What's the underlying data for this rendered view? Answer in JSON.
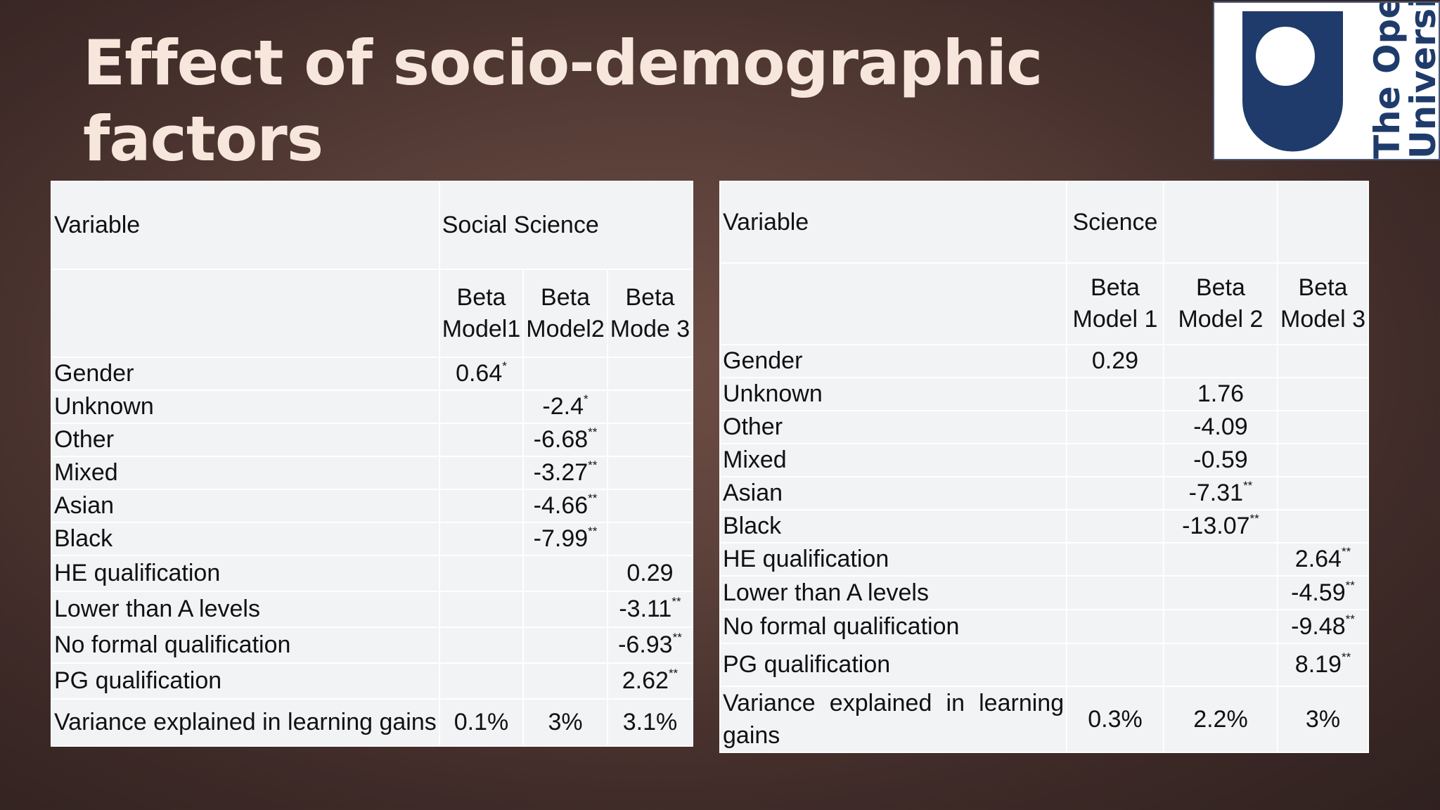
{
  "title": {
    "line1": "Effect of socio-demographic",
    "line2": "factors"
  },
  "logo": {
    "line1": "The Open",
    "line2": "University",
    "colors": {
      "navy": "#1f3b6b",
      "white": "#ffffff"
    }
  },
  "left_table": {
    "variable_header": "Variable",
    "group_header": "Social Science",
    "models": [
      {
        "l1": "Beta",
        "l2": "Model1"
      },
      {
        "l1": "Beta",
        "l2": "Model2"
      },
      {
        "l1": "Beta",
        "l2": "Mode 3"
      }
    ],
    "rows": [
      {
        "label": "Gender",
        "cells": [
          {
            "v": "0.64",
            "s": "*"
          },
          {
            "v": "",
            "s": ""
          },
          {
            "v": "",
            "s": ""
          }
        ]
      },
      {
        "label": "Unknown",
        "cells": [
          {
            "v": "",
            "s": ""
          },
          {
            "v": "-2.4",
            "s": "*"
          },
          {
            "v": "",
            "s": ""
          }
        ]
      },
      {
        "label": "Other",
        "cells": [
          {
            "v": "",
            "s": ""
          },
          {
            "v": "-6.68",
            "s": "**"
          },
          {
            "v": "",
            "s": ""
          }
        ]
      },
      {
        "label": "Mixed",
        "cells": [
          {
            "v": "",
            "s": ""
          },
          {
            "v": "-3.27",
            "s": "**"
          },
          {
            "v": "",
            "s": ""
          }
        ]
      },
      {
        "label": "Asian",
        "cells": [
          {
            "v": "",
            "s": ""
          },
          {
            "v": "-4.66",
            "s": "**"
          },
          {
            "v": "",
            "s": ""
          }
        ]
      },
      {
        "label": "Black",
        "cells": [
          {
            "v": "",
            "s": ""
          },
          {
            "v": "-7.99",
            "s": "**"
          },
          {
            "v": "",
            "s": ""
          }
        ]
      },
      {
        "label": "HE qualification",
        "cells": [
          {
            "v": "",
            "s": ""
          },
          {
            "v": "",
            "s": ""
          },
          {
            "v": "0.29",
            "s": ""
          }
        ]
      },
      {
        "label": "Lower than A levels",
        "cells": [
          {
            "v": "",
            "s": ""
          },
          {
            "v": "",
            "s": ""
          },
          {
            "v": "-3.11",
            "s": "**"
          }
        ]
      },
      {
        "label": "No formal qualification",
        "cells": [
          {
            "v": "",
            "s": ""
          },
          {
            "v": "",
            "s": ""
          },
          {
            "v": "-6.93",
            "s": "**"
          }
        ]
      },
      {
        "label": "PG qualification",
        "cells": [
          {
            "v": "",
            "s": ""
          },
          {
            "v": "",
            "s": ""
          },
          {
            "v": "2.62",
            "s": "**"
          }
        ]
      }
    ],
    "variance": {
      "label": "Variance explained in learning gains",
      "values": [
        "0.1%",
        "3%",
        "3.1%"
      ]
    }
  },
  "right_table": {
    "variable_header": "Variable",
    "group_header": "Science",
    "models": [
      {
        "l1": "Beta",
        "l2": "Model 1"
      },
      {
        "l1": "Beta",
        "l2": "Model 2"
      },
      {
        "l1": "Beta",
        "l2": "Model 3"
      }
    ],
    "rows": [
      {
        "label": "Gender",
        "cells": [
          {
            "v": "0.29",
            "s": ""
          },
          {
            "v": "",
            "s": ""
          },
          {
            "v": "",
            "s": ""
          }
        ]
      },
      {
        "label": "Unknown",
        "cells": [
          {
            "v": "",
            "s": ""
          },
          {
            "v": "1.76",
            "s": ""
          },
          {
            "v": "",
            "s": ""
          }
        ]
      },
      {
        "label": "Other",
        "cells": [
          {
            "v": "",
            "s": ""
          },
          {
            "v": "-4.09",
            "s": ""
          },
          {
            "v": "",
            "s": ""
          }
        ]
      },
      {
        "label": "Mixed",
        "cells": [
          {
            "v": "",
            "s": ""
          },
          {
            "v": "-0.59",
            "s": ""
          },
          {
            "v": "",
            "s": ""
          }
        ]
      },
      {
        "label": "Asian",
        "cells": [
          {
            "v": "",
            "s": ""
          },
          {
            "v": "-7.31",
            "s": "**"
          },
          {
            "v": "",
            "s": ""
          }
        ]
      },
      {
        "label": "Black",
        "cells": [
          {
            "v": "",
            "s": ""
          },
          {
            "v": "-13.07",
            "s": "**"
          },
          {
            "v": "",
            "s": ""
          }
        ]
      },
      {
        "label": "HE qualification",
        "cells": [
          {
            "v": "",
            "s": ""
          },
          {
            "v": "",
            "s": ""
          },
          {
            "v": "2.64",
            "s": "**"
          }
        ]
      },
      {
        "label": "Lower than A levels",
        "cells": [
          {
            "v": "",
            "s": ""
          },
          {
            "v": "",
            "s": ""
          },
          {
            "v": "-4.59",
            "s": "**"
          }
        ]
      },
      {
        "label": "No formal qualification",
        "cells": [
          {
            "v": "",
            "s": ""
          },
          {
            "v": "",
            "s": ""
          },
          {
            "v": "-9.48",
            "s": "**"
          }
        ]
      },
      {
        "label": "PG qualification",
        "cells": [
          {
            "v": "",
            "s": ""
          },
          {
            "v": "",
            "s": ""
          },
          {
            "v": "8.19",
            "s": "**"
          }
        ]
      }
    ],
    "variance": {
      "label": "Variance explained in learning gains",
      "values": [
        "0.3%",
        "2.2%",
        "3%"
      ]
    }
  }
}
